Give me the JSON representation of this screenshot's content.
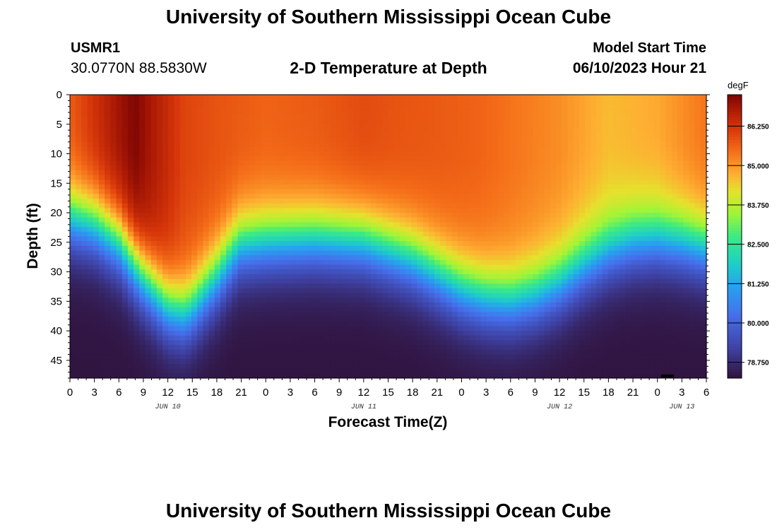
{
  "header": {
    "title": "University of Southern Mississippi Ocean Cube",
    "station_id": "USMR1",
    "station_coords": "30.0770N  88.5830W",
    "subtitle": "2-D Temperature at Depth",
    "model_start_label": "Model Start Time",
    "model_start_value": "06/10/2023 Hour 21"
  },
  "footer": {
    "title": "University of Southern Mississippi Ocean Cube"
  },
  "chart_data": {
    "type": "heatmap",
    "title": "2-D Temperature at Depth",
    "xlabel": "Forecast Time(Z)",
    "ylabel": "Depth (ft)",
    "x_range_hours": [
      0,
      78
    ],
    "y_range_ft": [
      0,
      48
    ],
    "x_tick_labels": [
      "0",
      "3",
      "6",
      "9",
      "12",
      "15",
      "18",
      "21",
      "0",
      "3",
      "6",
      "9",
      "12",
      "15",
      "18",
      "21",
      "0",
      "3",
      "6",
      "9",
      "12",
      "15",
      "18",
      "21",
      "0",
      "3",
      "6"
    ],
    "y_tick_labels": [
      "0",
      "5",
      "10",
      "15",
      "20",
      "25",
      "30",
      "35",
      "40",
      "45"
    ],
    "y_tick_values": [
      0,
      5,
      10,
      15,
      20,
      25,
      30,
      35,
      40,
      45
    ],
    "date_labels": [
      {
        "text": "JUN 10",
        "hour": 12
      },
      {
        "text": "JUN 11",
        "hour": 36
      },
      {
        "text": "JUN 12",
        "hour": 60
      },
      {
        "text": "JUN 13",
        "hour": 75
      }
    ],
    "colorbar": {
      "unit": "degF",
      "min": 78.25,
      "max": 87.25,
      "tick_values": [
        86.25,
        85.0,
        83.75,
        82.5,
        81.25,
        80.0,
        78.75
      ],
      "tick_labels": [
        "86.250",
        "85.000",
        "83.750",
        "82.500",
        "81.250",
        "80.000",
        "78.750"
      ]
    },
    "thermocline_depth_ft": {
      "hours": [
        0,
        3,
        6,
        9,
        12,
        14,
        15,
        18,
        20,
        21,
        24,
        30,
        36,
        42,
        48,
        51,
        54,
        57,
        60,
        63,
        66,
        69,
        72,
        75,
        78
      ],
      "values": [
        21,
        22,
        25,
        31,
        36,
        37,
        36,
        31,
        27,
        25.5,
        25,
        24.5,
        25,
        28,
        33,
        34.5,
        35,
        34,
        32,
        29,
        26.5,
        25,
        24.5,
        25,
        26
      ]
    },
    "surface_temp_degF": {
      "hours": [
        0,
        3,
        6,
        8,
        10,
        14,
        18,
        24,
        30,
        36,
        40,
        46,
        50,
        54,
        60,
        66,
        72,
        78
      ],
      "values": [
        85.7,
        86.3,
        86.9,
        87.2,
        86.8,
        86.0,
        85.8,
        85.6,
        85.7,
        85.9,
        85.8,
        85.7,
        85.6,
        85.4,
        85.1,
        84.6,
        84.8,
        85.4
      ]
    },
    "bottom_temp_degF": 78.3
  },
  "colors": {
    "background": "#ffffff",
    "text": "#000000"
  }
}
